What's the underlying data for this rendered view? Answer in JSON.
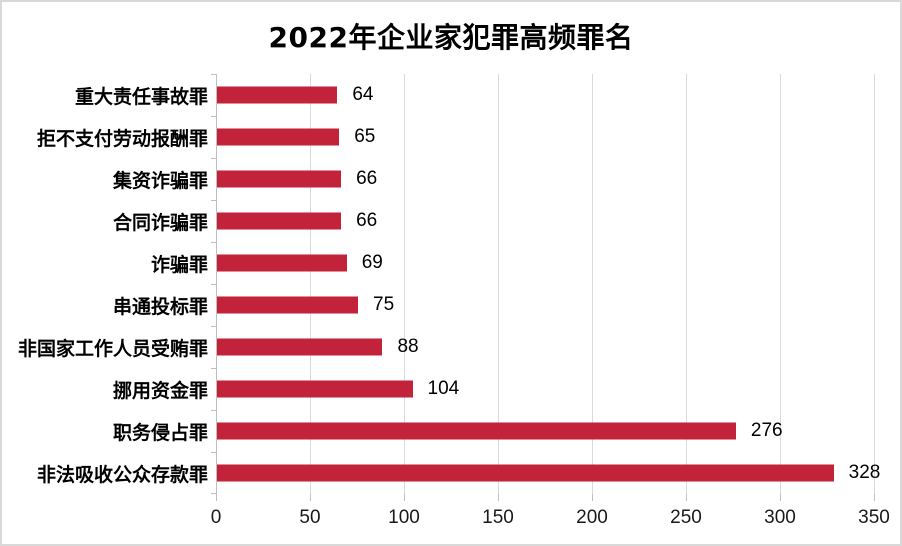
{
  "chart_data": {
    "type": "bar",
    "orientation": "horizontal",
    "title": "2022年企业家犯罪高频罪名",
    "categories": [
      "重大责任事故罪",
      "拒不支付劳动报酬罪",
      "集资诈骗罪",
      "合同诈骗罪",
      "诈骗罪",
      "串通投标罪",
      "非国家工作人员受贿罪",
      "挪用资金罪",
      "职务侵占罪",
      "非法吸收公众存款罪"
    ],
    "values": [
      64,
      65,
      66,
      66,
      69,
      75,
      88,
      104,
      276,
      328
    ],
    "data_labels": [
      64,
      65,
      66,
      66,
      69,
      75,
      88,
      104,
      276,
      328
    ],
    "xlabel": "",
    "ylabel": "",
    "xlim": [
      0,
      350
    ],
    "x_ticks": [
      0,
      50,
      100,
      150,
      200,
      250,
      300,
      350
    ],
    "grid": "vertical",
    "legend": "none",
    "colors": {
      "bar": "#C2223A",
      "gridline": "#D9D9D9",
      "axis": "#BFBFBF",
      "text": "#000000",
      "frame_border": "#D9D9D9"
    }
  }
}
